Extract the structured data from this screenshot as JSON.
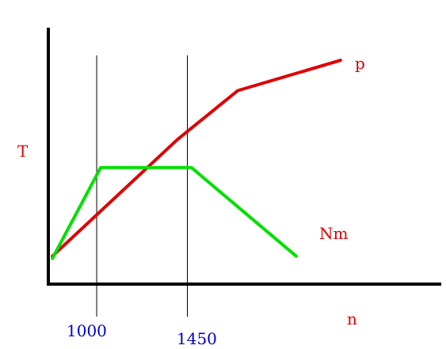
{
  "chart_data": {
    "type": "line",
    "title": "",
    "xlabel": "n",
    "ylabel": "T",
    "x_ticks": [
      "1000",
      "1450"
    ],
    "grid": false,
    "legend": "none",
    "series": [
      {
        "name": "p",
        "color": "#e00000",
        "points": [
          [
            780,
            0.12
          ],
          [
            1400,
            0.62
          ],
          [
            1700,
            0.83
          ],
          [
            2210,
            0.96
          ]
        ]
      },
      {
        "name": "Nm",
        "color": "#00e000",
        "points": [
          [
            780,
            0.11
          ],
          [
            1020,
            0.5
          ],
          [
            1470,
            0.5
          ],
          [
            1990,
            0.12
          ]
        ]
      }
    ],
    "x_range": [
      760,
      2710
    ],
    "y_range": [
      0,
      1.1
    ]
  },
  "colors": {
    "axis": "#000000",
    "ref_line": "#000000",
    "tick_label": "#0000cc",
    "label": "#e00000"
  }
}
